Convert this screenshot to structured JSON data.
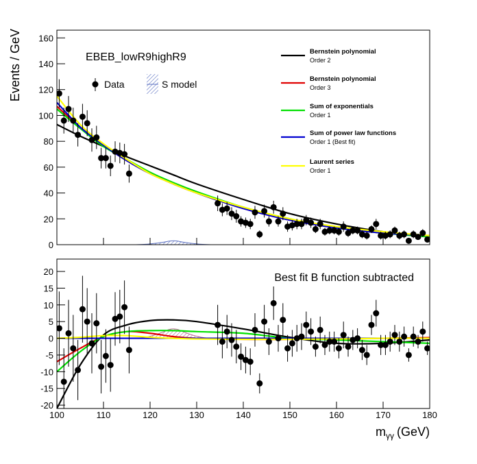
{
  "chart_data": [
    {
      "type": "fit",
      "label": "EBEB_lowR9highR9",
      "y_label": "Events / GeV",
      "xlim": [
        100,
        180
      ],
      "ylim": [
        0,
        166
      ],
      "xticks": [
        100,
        110,
        120,
        130,
        140,
        150,
        160,
        170,
        180
      ],
      "yticks": [
        0,
        20,
        40,
        60,
        80,
        100,
        120,
        140,
        160
      ],
      "data": {
        "name": "Data",
        "color": "#000000",
        "x": [
          100.5,
          101.5,
          102.5,
          103.5,
          104.5,
          105.5,
          106.5,
          107.5,
          108.5,
          109.5,
          110.5,
          111.5,
          112.5,
          113.5,
          114.5,
          115.5,
          134.5,
          135.5,
          136.5,
          137.5,
          138.5,
          139.5,
          140.5,
          141.5,
          142.5,
          143.5,
          144.5,
          145.5,
          146.5,
          147.5,
          148.5,
          149.5,
          150.5,
          151.5,
          152.5,
          153.5,
          154.5,
          155.5,
          156.5,
          157.5,
          158.5,
          159.5,
          160.5,
          161.5,
          162.5,
          163.5,
          164.5,
          165.5,
          166.5,
          167.5,
          168.5,
          169.5,
          170.5,
          171.5,
          172.5,
          173.5,
          174.5,
          175.5,
          176.5,
          177.5,
          178.5,
          179.5
        ],
        "values": [
          117,
          96,
          105,
          96,
          85,
          99,
          94,
          81,
          83,
          67,
          67,
          61,
          72,
          71,
          70,
          55,
          32,
          27,
          28,
          24,
          22,
          18,
          17,
          16,
          25,
          8,
          26,
          18,
          29,
          18,
          24,
          14,
          15,
          16,
          16,
          19,
          17,
          12,
          16,
          10,
          11,
          11,
          10,
          14,
          9,
          11,
          11,
          8,
          7,
          12,
          16,
          7,
          7,
          8,
          11,
          7,
          8,
          3,
          8,
          6,
          9,
          4
        ],
        "errors": [
          11,
          10,
          10,
          10,
          9,
          10,
          10,
          9,
          9,
          8,
          8,
          8,
          8,
          8,
          8,
          7,
          6,
          5,
          5,
          5,
          5,
          4,
          4,
          4,
          5,
          3,
          5,
          4,
          5,
          4,
          5,
          4,
          4,
          4,
          4,
          4,
          4,
          3,
          4,
          3,
          3,
          3,
          3,
          4,
          3,
          3,
          3,
          3,
          3,
          3,
          4,
          3,
          3,
          3,
          3,
          3,
          3,
          2,
          3,
          2,
          3,
          2
        ]
      },
      "signal": {
        "name": "S model",
        "color": "#5a6fc0",
        "x": [
          117,
          119,
          121,
          123,
          124,
          125,
          126,
          127,
          129,
          131,
          133
        ],
        "values": [
          0,
          0.3,
          1,
          2,
          2.7,
          3,
          2.7,
          2,
          1,
          0.3,
          0
        ]
      },
      "curve_x": [
        100,
        105,
        110,
        115,
        120,
        125,
        130,
        140,
        150,
        160,
        170,
        180
      ],
      "series": [
        {
          "name": "Bernstein polynomial",
          "order": "Order 2",
          "color": "#000000",
          "values": [
            93,
            84,
            76,
            68,
            61,
            54,
            47,
            35,
            24,
            16,
            10,
            6
          ]
        },
        {
          "name": "Bernstein polynomial",
          "order": "Order 3",
          "color": "#e00000",
          "values": [
            107,
            91,
            77,
            65,
            55,
            47,
            40,
            28,
            19,
            13,
            9,
            7
          ]
        },
        {
          "name": "Sum of exponentials",
          "order": "Order 1",
          "color": "#00e000",
          "values": [
            105,
            90,
            76,
            66,
            56,
            48,
            41,
            29,
            20,
            13,
            9,
            6
          ]
        },
        {
          "name": "Sum of power law functions",
          "order": "Order 1 (Best fit)",
          "color": "#0000d0",
          "values": [
            110,
            91,
            77,
            65,
            55,
            47,
            40,
            28,
            19,
            13,
            9,
            7
          ]
        },
        {
          "name": "Laurent series",
          "order": "Order 1",
          "color": "#ffff00",
          "values": [
            115,
            93,
            78,
            66,
            55,
            47,
            40,
            29,
            20,
            14,
            10,
            7
          ]
        }
      ]
    },
    {
      "type": "fit",
      "annotation": "Best fit B function subtracted",
      "x_label": {
        "symbol": "m",
        "subscript": "γγ",
        "unit": "(GeV)"
      },
      "xlim": [
        100,
        180
      ],
      "ylim": [
        -21,
        23.7
      ],
      "xticks": [
        100,
        110,
        120,
        130,
        140,
        150,
        160,
        170,
        180
      ],
      "yticks": [
        -20,
        -15,
        -10,
        -5,
        0,
        5,
        10,
        15,
        20
      ],
      "data": {
        "color": "#000000",
        "x": [
          100.5,
          101.5,
          102.5,
          103.5,
          104.5,
          105.5,
          106.5,
          107.5,
          108.5,
          109.5,
          110.5,
          111.5,
          112.5,
          113.5,
          114.5,
          115.5,
          134.5,
          135.5,
          136.5,
          137.5,
          138.5,
          139.5,
          140.5,
          141.5,
          142.5,
          143.5,
          144.5,
          145.5,
          146.5,
          147.5,
          148.5,
          149.5,
          150.5,
          151.5,
          152.5,
          153.5,
          154.5,
          155.5,
          156.5,
          157.5,
          158.5,
          159.5,
          160.5,
          161.5,
          162.5,
          163.5,
          164.5,
          165.5,
          166.5,
          167.5,
          168.5,
          169.5,
          170.5,
          171.5,
          172.5,
          173.5,
          174.5,
          175.5,
          176.5,
          177.5,
          178.5,
          179.5
        ],
        "values": [
          3,
          -13,
          1.5,
          -3,
          -9.5,
          8.7,
          5,
          -1.5,
          4.5,
          -8.5,
          -5.3,
          -8,
          5.8,
          6.5,
          9.3,
          -3.5,
          4,
          -1,
          2,
          -0.5,
          -2.5,
          -5.5,
          -6.5,
          -7,
          2.5,
          -13.5,
          5,
          -1,
          10.5,
          0,
          5.5,
          -3,
          -1.5,
          0,
          0.5,
          4,
          2,
          -2.5,
          2.5,
          -2,
          -1,
          -1,
          -3,
          1,
          -2.5,
          -0.5,
          0,
          -3.5,
          -5,
          4,
          7.5,
          -2,
          -2,
          -1,
          1,
          -1,
          0.5,
          -5,
          0.5,
          -1,
          2,
          -3
        ],
        "errors": [
          11,
          10,
          10,
          10,
          9,
          10,
          10,
          9,
          9,
          8,
          8,
          8,
          8,
          8,
          8,
          7,
          6,
          5,
          5,
          5,
          5,
          4,
          4,
          4,
          5,
          3,
          5,
          4,
          5,
          4,
          5,
          4,
          4,
          4,
          4,
          4,
          4,
          3,
          4,
          3,
          3,
          3,
          3,
          4,
          3,
          3,
          3,
          3,
          3,
          3,
          4,
          3,
          3,
          3,
          3,
          3,
          3,
          2,
          3,
          2,
          3,
          2
        ]
      },
      "signal": {
        "color": "#b0608a",
        "x": [
          117,
          119,
          121,
          123,
          124,
          125,
          126,
          127,
          129,
          131,
          133
        ],
        "values": [
          0,
          0.3,
          1,
          2,
          2.6,
          2.8,
          2.6,
          2,
          1,
          0.3,
          0
        ]
      },
      "curve_x": [
        100,
        105,
        110,
        115,
        120,
        125,
        130,
        140,
        150,
        160,
        170,
        180
      ],
      "series": [
        {
          "color": "#000000",
          "values": [
            -21,
            -8,
            1,
            4,
            5.3,
            5.5,
            5,
            2.8,
            0.3,
            -1.5,
            -1.5,
            -0.5
          ]
        },
        {
          "color": "#e00000",
          "values": [
            -7,
            -3,
            0.5,
            2,
            1.5,
            0.5,
            0,
            -0.3,
            -0.3,
            -0.2,
            0,
            0.2
          ]
        },
        {
          "color": "#00e000",
          "values": [
            -10,
            -4,
            0.5,
            2,
            2.3,
            2.3,
            2,
            1.5,
            0,
            -0.5,
            -1,
            -1.5
          ]
        },
        {
          "color": "#0000d0",
          "values": [
            0,
            0,
            0,
            0,
            0,
            0,
            0,
            0,
            0,
            0,
            0,
            0
          ]
        },
        {
          "color": "#ffff00",
          "values": [
            0,
            0.3,
            0.8,
            0.8,
            0.3,
            0,
            -0.2,
            -0.3,
            -0.3,
            -0.2,
            0,
            0
          ]
        }
      ]
    }
  ]
}
